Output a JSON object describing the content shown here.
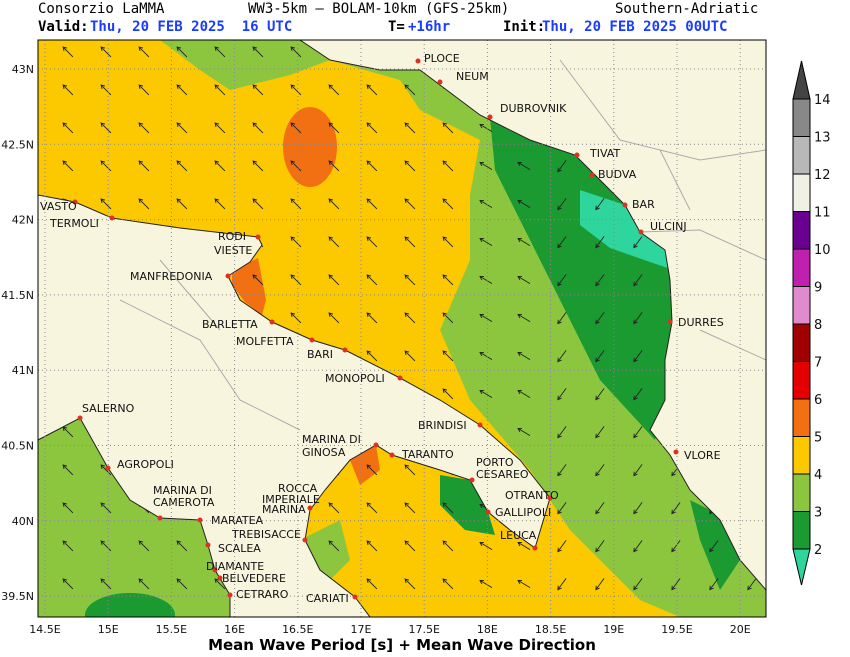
{
  "header": {
    "agency": "Consorzio LaMMA",
    "model": "WW3-5km – BOLAM-10km (GFS-25km)",
    "region": "Southern-Adriatic",
    "valid_label": "Valid:",
    "valid": "Thu, 20 FEB 2025  16 UTC",
    "step_label": "T=",
    "step": "+16hr",
    "init_label": "Init:",
    "init": "Thu, 20 FEB 2025 00UTC"
  },
  "axes": {
    "lat_ticks": [
      "43N",
      "42.5N",
      "42N",
      "41.5N",
      "41N",
      "40.5N",
      "40N",
      "39.5N"
    ],
    "lon_ticks": [
      "14.5E",
      "15E",
      "15.5E",
      "16E",
      "16.5E",
      "17E",
      "17.5E",
      "18E",
      "18.5E",
      "19E",
      "19.5E",
      "20E"
    ]
  },
  "cities": [
    "PLOCE",
    "NEUM",
    "DUBROVNIK",
    "TIVAT",
    "BUDVA",
    "BAR",
    "ULCINJ",
    "DURRES",
    "VLORE",
    "VASTO",
    "TERMOLI",
    "RODI",
    "VIESTE",
    "MANFREDONIA",
    "BARLETTA",
    "MOLFETTA",
    "BARI",
    "MONOPOLI",
    "BRINDISI",
    "MARINA DI",
    "GINOSA",
    "TARANTO",
    "PORTO",
    "CESAREO",
    "OTRANTO",
    "GALLIPOLI",
    "LEUCA",
    "SALERNO",
    "AGROPOLI",
    "MARINA DI",
    "CAMEROTA",
    "MARATEA",
    "ROCCA",
    "IMPERIALE",
    "MARINA",
    "TREBISACCE",
    "SCALEA",
    "DIAMANTE",
    "BELVEDERE",
    "CETRARO",
    "CARIATI"
  ],
  "colorbar": {
    "levels": [
      2,
      3,
      4,
      5,
      6,
      7,
      8,
      9,
      10,
      11,
      12,
      13,
      14
    ],
    "colors": [
      "#2ed59c",
      "#1a9a30",
      "#8cc63f",
      "#fcc800",
      "#f26f12",
      "#e40000",
      "#a00000",
      "#e08ad0",
      "#c020b0",
      "#6a0090",
      "#f0f0e6",
      "#b8b8b8",
      "#888888",
      "#444444"
    ]
  },
  "footer": "Mean Wave Period [s] + Mean Wave Direction"
}
